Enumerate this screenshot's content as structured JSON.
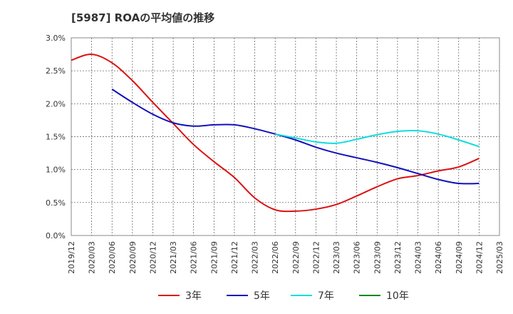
{
  "title": "[5987]  ROAの平均値の推移",
  "chart_data": {
    "type": "line",
    "title": "[5987]  ROAの平均値の推移",
    "xlabel": "",
    "ylabel": "",
    "ylim": [
      0,
      3.0
    ],
    "y_ticks": [
      "0.0%",
      "0.5%",
      "1.0%",
      "1.5%",
      "2.0%",
      "2.5%",
      "3.0%"
    ],
    "x_ticks": [
      "2019/12",
      "2020/03",
      "2020/06",
      "2020/09",
      "2020/12",
      "2021/03",
      "2021/06",
      "2021/09",
      "2021/12",
      "2022/03",
      "2022/06",
      "2022/09",
      "2022/12",
      "2023/03",
      "2023/06",
      "2023/09",
      "2023/12",
      "2024/03",
      "2024/06",
      "2024/09",
      "2024/12",
      "2025/03"
    ],
    "grid": true,
    "legend_position": "bottom",
    "series": [
      {
        "name": "3年",
        "color": "#dd1111",
        "values": [
          2.66,
          2.75,
          2.62,
          2.35,
          2.02,
          1.7,
          1.38,
          1.12,
          0.88,
          0.57,
          0.39,
          0.37,
          0.4,
          0.47,
          0.6,
          0.74,
          0.86,
          0.91,
          0.98,
          1.04,
          1.17,
          null
        ]
      },
      {
        "name": "5年",
        "color": "#1111bb",
        "values": [
          null,
          null,
          2.22,
          2.02,
          1.84,
          1.71,
          1.66,
          1.68,
          1.68,
          1.62,
          1.54,
          1.45,
          1.34,
          1.25,
          1.18,
          1.11,
          1.03,
          0.94,
          0.85,
          0.79,
          0.79,
          null
        ]
      },
      {
        "name": "7年",
        "color": "#11dddd",
        "values": [
          null,
          null,
          null,
          null,
          null,
          null,
          null,
          null,
          null,
          null,
          1.54,
          1.48,
          1.42,
          1.4,
          1.46,
          1.53,
          1.58,
          1.59,
          1.54,
          1.45,
          1.35,
          null
        ]
      },
      {
        "name": "10年",
        "color": "#118811",
        "values": [
          null,
          null,
          null,
          null,
          null,
          null,
          null,
          null,
          null,
          null,
          null,
          null,
          null,
          null,
          null,
          null,
          null,
          null,
          null,
          null,
          null,
          null
        ]
      }
    ]
  }
}
